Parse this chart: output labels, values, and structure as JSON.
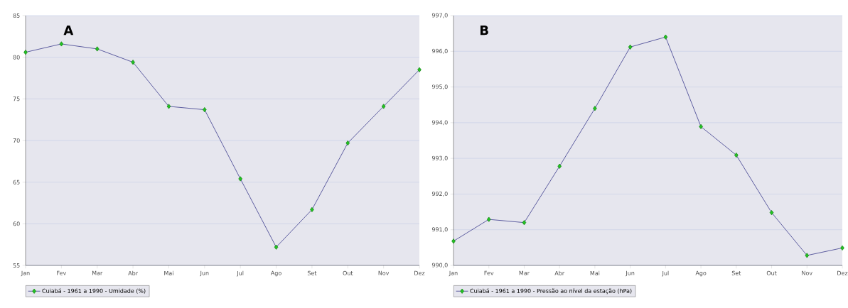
{
  "chart_data": [
    {
      "type": "line",
      "categories": [
        "Jan",
        "Fev",
        "Mar",
        "Abr",
        "Mai",
        "Jun",
        "Jul",
        "Ago",
        "Set",
        "Out",
        "Nov",
        "Dez"
      ],
      "series": [
        {
          "name": "Cuiabá - 1961 a 1990 - Umidade (%)",
          "color": "#22c322",
          "values": [
            80.6,
            81.6,
            81.0,
            79.4,
            74.1,
            73.7,
            65.4,
            57.2,
            61.7,
            69.7,
            74.1,
            78.5
          ]
        }
      ],
      "ylim": [
        55,
        85
      ],
      "yticks": [
        55,
        60,
        65,
        70,
        75,
        80,
        85
      ],
      "grid": "y",
      "legend": "bottom left",
      "marker": "diamond",
      "line_style": "solid",
      "annotations": [
        "A"
      ]
    },
    {
      "type": "line",
      "categories": [
        "Jan",
        "Fev",
        "Mar",
        "Abr",
        "Mai",
        "Jun",
        "Jul",
        "Ago",
        "Set",
        "Out",
        "Nov",
        "Dez"
      ],
      "series": [
        {
          "name": "Cuiabá - 1961 a 1990 - Pressão ao nível da estação (hPa)",
          "color": "#22c322",
          "values": [
            990.68,
            991.29,
            991.2,
            992.78,
            994.4,
            996.12,
            996.4,
            993.89,
            993.09,
            991.48,
            990.28,
            990.49
          ]
        }
      ],
      "ylim": [
        990,
        997
      ],
      "yticks": [
        {
          "value": 990,
          "label": "990,0"
        },
        {
          "value": 991,
          "label": "991,0"
        },
        {
          "value": 992,
          "label": "992,0"
        },
        {
          "value": 993,
          "label": "993,0"
        },
        {
          "value": 994,
          "label": "994,0"
        },
        {
          "value": 995,
          "label": "995,0"
        },
        {
          "value": 996,
          "label": "996,0"
        },
        {
          "value": 997,
          "label": "997,0"
        }
      ],
      "grid": "y",
      "legend": "bottom left",
      "marker": "diamond",
      "line_style": "solid",
      "annotations": [
        "B"
      ]
    }
  ]
}
